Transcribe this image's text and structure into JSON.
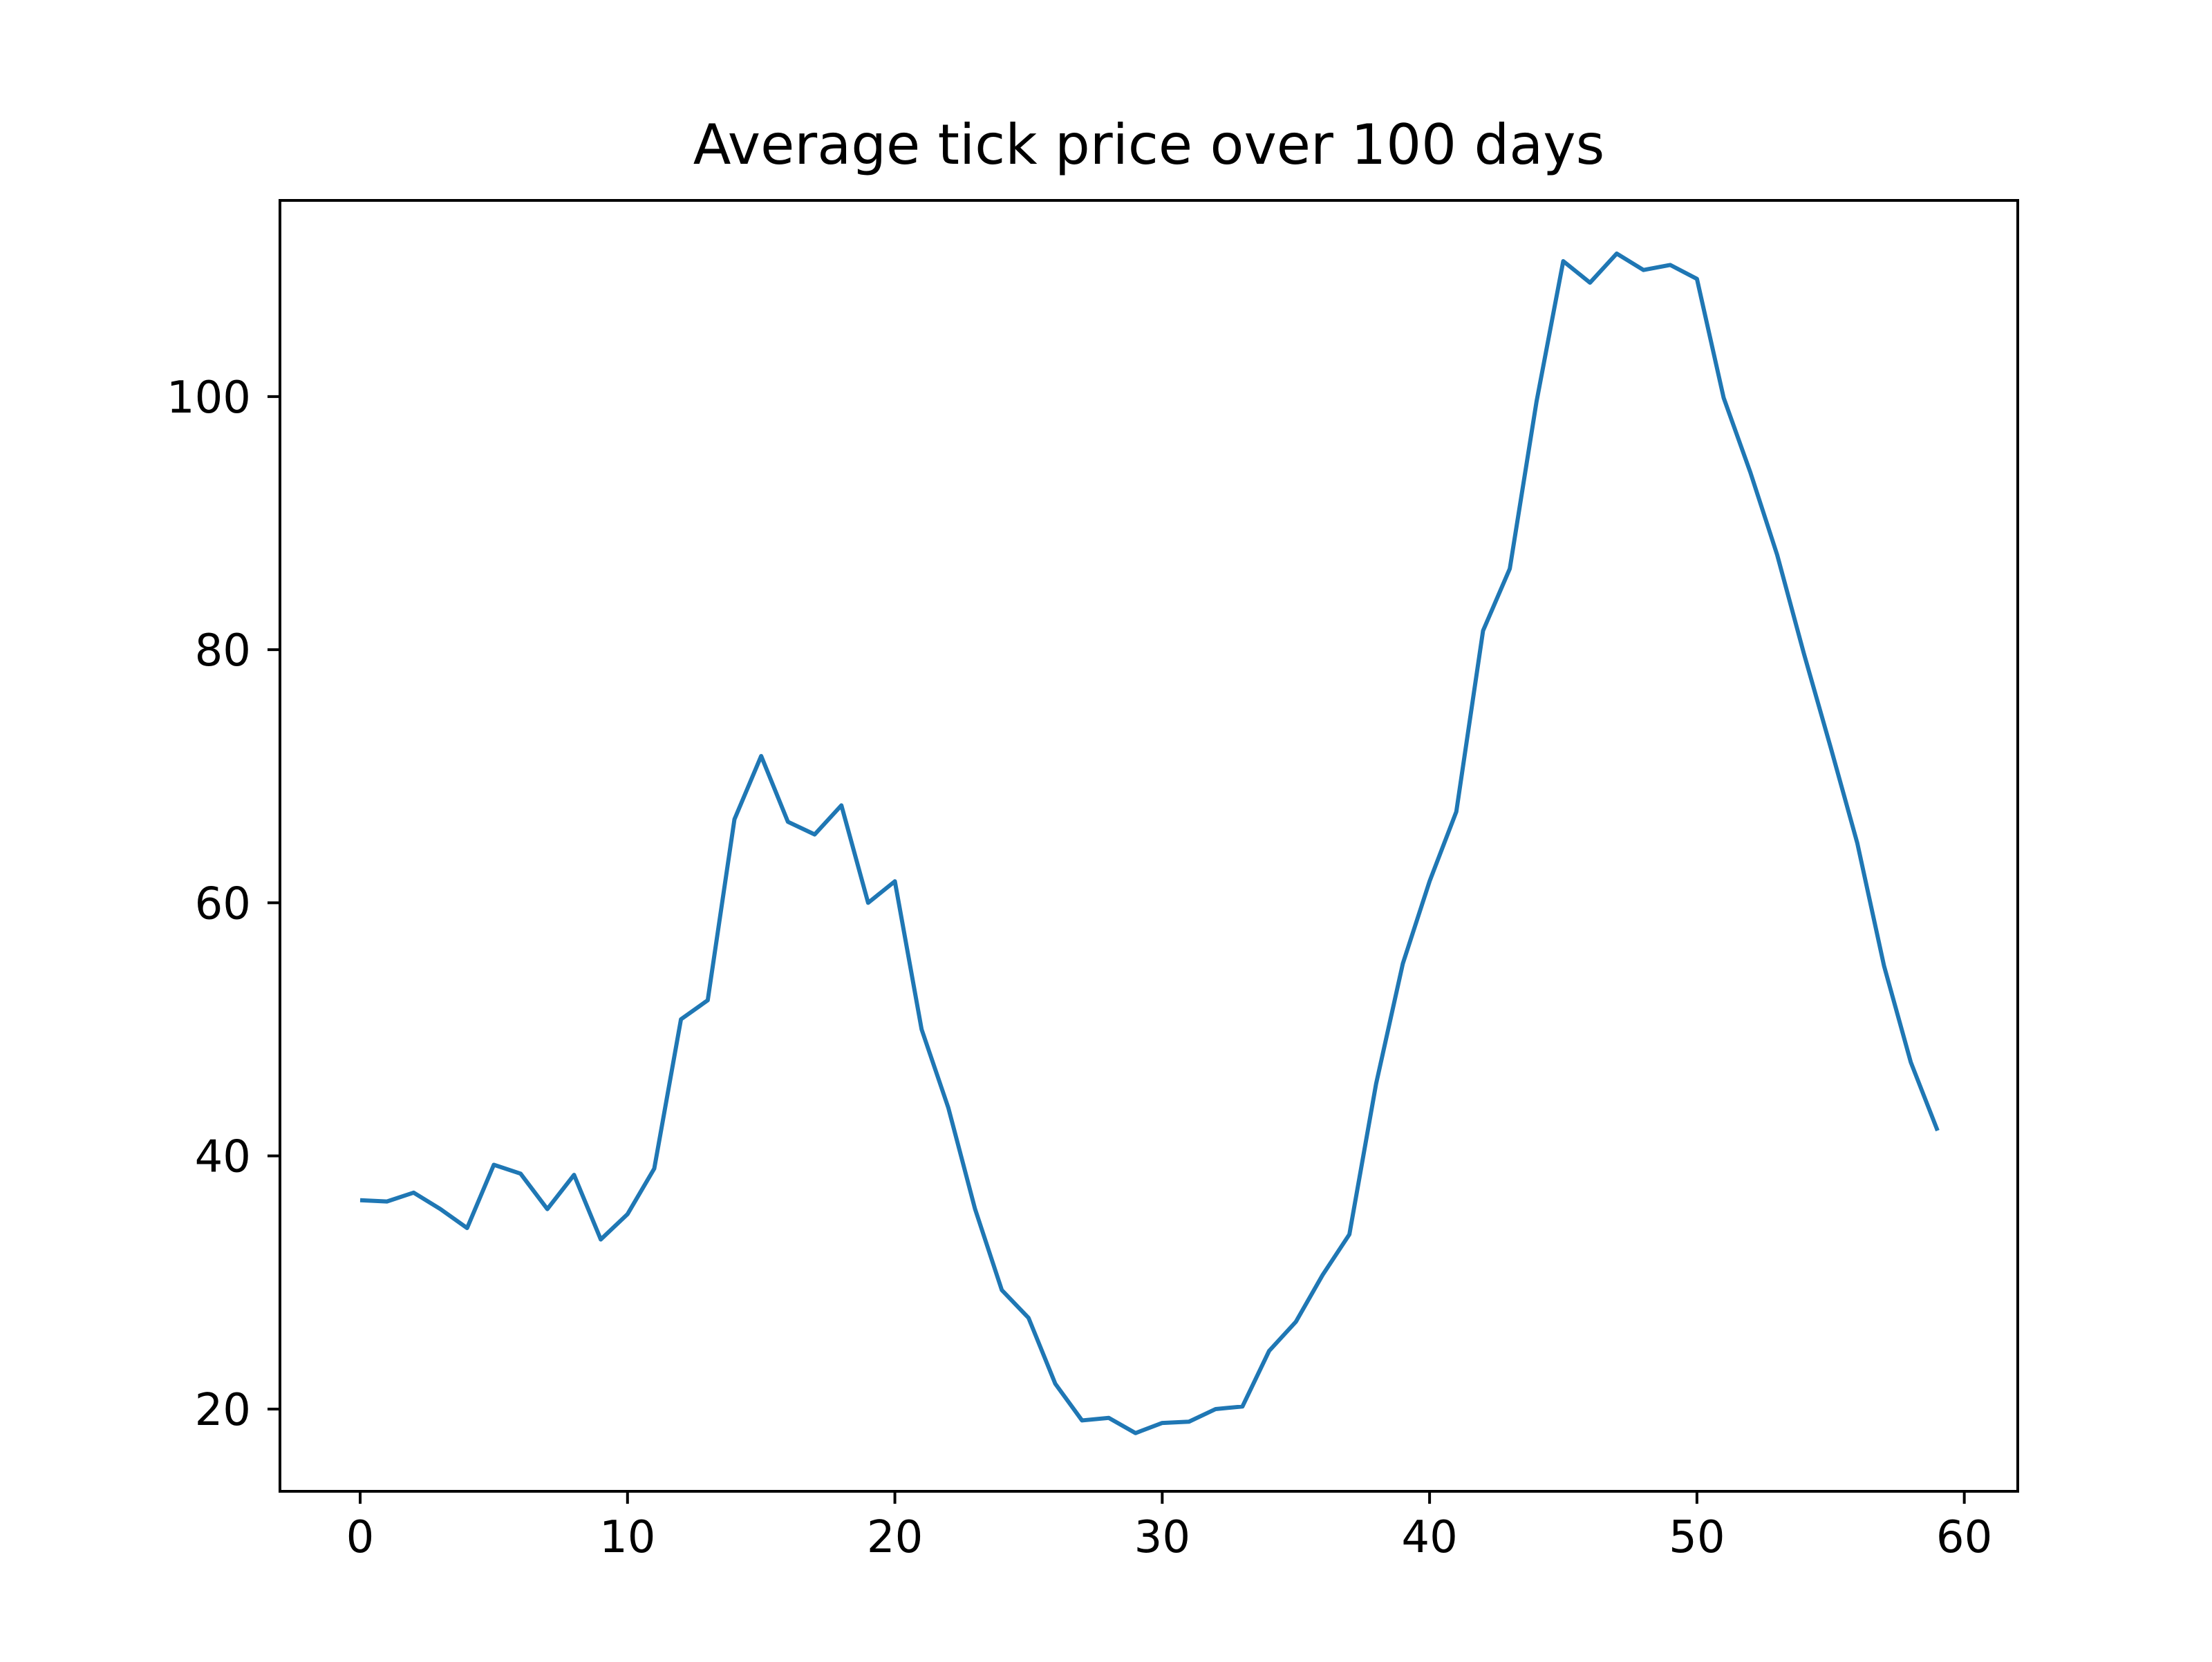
{
  "chart_data": {
    "type": "line",
    "title": "Average tick price over 100 days",
    "xlabel": "",
    "ylabel": "",
    "xlim": [
      -3,
      62
    ],
    "ylim": [
      13.5,
      115.5
    ],
    "xticks": [
      0,
      10,
      20,
      30,
      40,
      50,
      60
    ],
    "xtick_labels": [
      "0",
      "10",
      "20",
      "30",
      "40",
      "50",
      "60"
    ],
    "yticks": [
      20,
      40,
      60,
      80,
      100
    ],
    "ytick_labels": [
      "20",
      "40",
      "60",
      "80",
      "100"
    ],
    "grid": false,
    "series": [
      {
        "color": "#1f77b4",
        "x": [
          0,
          1,
          2,
          3,
          4,
          5,
          6,
          7,
          8,
          9,
          10,
          11,
          12,
          13,
          14,
          15,
          16,
          17,
          18,
          19,
          20,
          21,
          22,
          23,
          24,
          25,
          26,
          27,
          28,
          29,
          30,
          31,
          32,
          33,
          34,
          35,
          36,
          37,
          38,
          39,
          40,
          41,
          42,
          43,
          44,
          45,
          46,
          47,
          48,
          49,
          50,
          51,
          52,
          53,
          54,
          55,
          56,
          57,
          58,
          59
        ],
        "values": [
          36.5,
          36.4,
          37.1,
          35.8,
          34.3,
          39.3,
          38.6,
          35.8,
          38.5,
          33.4,
          35.4,
          39.0,
          50.8,
          52.3,
          66.6,
          71.6,
          66.4,
          65.4,
          67.7,
          60.0,
          61.7,
          50.0,
          43.8,
          35.8,
          29.4,
          27.2,
          22.0,
          19.1,
          19.3,
          18.1,
          18.9,
          19.0,
          20.0,
          20.2,
          24.6,
          26.9,
          30.6,
          33.8,
          45.7,
          55.2,
          61.7,
          67.2,
          81.5,
          86.4,
          99.6,
          110.7,
          109.0,
          111.3,
          110.0,
          110.4,
          109.3,
          99.9,
          94.0,
          87.5,
          79.7,
          72.3,
          64.7,
          55.0,
          47.4,
          42.0
        ]
      }
    ]
  }
}
